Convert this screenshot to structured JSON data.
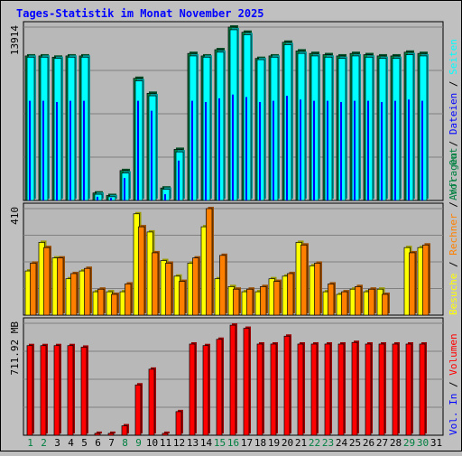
{
  "title": "Tages-Statistik im Monat November 2025",
  "colors": {
    "background": "#c0c0c0",
    "plot_bg": "#b8b8b8",
    "title": "#0000ff",
    "anfragen": "#008040",
    "dateien": "#0000ff",
    "seiten": "#00ffff",
    "besuche": "#ffff00",
    "rechner": "#ff8000",
    "volumen": "#ff0000",
    "weekend_day": "#008040",
    "weekday": "#000000",
    "separator": "#000000"
  },
  "right_legend": {
    "top": [
      {
        "text": "Anfragen",
        "color": "#008040"
      },
      {
        "text": "Dateien",
        "color": "#0000ff"
      },
      {
        "text": "Seiten",
        "color": "#00ffff"
      }
    ],
    "middle": [
      {
        "text": "Besuche",
        "color": "#ffff00"
      },
      {
        "text": "Rechner",
        "color": "#ff8000"
      },
      {
        "text": "Vol. Out",
        "color": "#008040"
      }
    ],
    "bottom": [
      {
        "text": "Vol. In",
        "color": "#0000ff"
      },
      {
        "text": "Volumen",
        "color": "#ff0000"
      }
    ]
  },
  "chart_data": [
    {
      "type": "bar",
      "max_label": "13914",
      "ylim": [
        0,
        13914
      ],
      "grid": true,
      "categories": [
        "1",
        "2",
        "3",
        "4",
        "5",
        "6",
        "7",
        "8",
        "9",
        "10",
        "11",
        "12",
        "13",
        "14",
        "15",
        "16",
        "17",
        "18",
        "19",
        "20",
        "21",
        "22",
        "23",
        "24",
        "25",
        "26",
        "27",
        "28",
        "29",
        "30",
        "31"
      ],
      "series": [
        {
          "name": "Anfragen",
          "values": [
            11600,
            11600,
            11500,
            11600,
            11600,
            600,
            400,
            2400,
            9800,
            8600,
            1000,
            4100,
            11800,
            11600,
            12100,
            13914,
            13500,
            11400,
            11600,
            12700,
            12000,
            11800,
            11700,
            11600,
            11800,
            11700,
            11600,
            11600,
            11900,
            11800,
            0
          ]
        },
        {
          "name": "Dateien",
          "values": [
            8000,
            8000,
            7900,
            8000,
            8000,
            300,
            200,
            1800,
            8000,
            7200,
            500,
            3200,
            8000,
            7900,
            8200,
            8500,
            8300,
            7900,
            8000,
            8400,
            8100,
            8000,
            8000,
            7900,
            8000,
            8000,
            7900,
            8000,
            8100,
            8000,
            0
          ]
        },
        {
          "name": "Seiten",
          "values": [
            11500,
            11500,
            11400,
            11500,
            11500,
            500,
            300,
            2200,
            9600,
            8400,
            900,
            3900,
            11600,
            11500,
            11900,
            13700,
            13300,
            11300,
            11500,
            12500,
            11800,
            11600,
            11500,
            11400,
            11600,
            11500,
            11400,
            11400,
            11700,
            11600,
            0
          ]
        }
      ]
    },
    {
      "type": "bar",
      "max_label": "410",
      "ylim": [
        0,
        410
      ],
      "grid": true,
      "categories": [
        "1",
        "2",
        "3",
        "4",
        "5",
        "6",
        "7",
        "8",
        "9",
        "10",
        "11",
        "12",
        "13",
        "14",
        "15",
        "16",
        "17",
        "18",
        "19",
        "20",
        "21",
        "22",
        "23",
        "24",
        "25",
        "26",
        "27",
        "28",
        "29",
        "30",
        "31"
      ],
      "series": [
        {
          "name": "Besuche",
          "values": [
            170,
            280,
            220,
            140,
            170,
            90,
            90,
            90,
            390,
            320,
            210,
            150,
            200,
            340,
            140,
            110,
            90,
            90,
            140,
            150,
            280,
            190,
            90,
            80,
            100,
            90,
            100,
            0,
            260,
            260,
            0
          ]
        },
        {
          "name": "Rechner",
          "values": [
            200,
            260,
            220,
            160,
            180,
            100,
            80,
            120,
            340,
            240,
            200,
            130,
            220,
            410,
            230,
            100,
            100,
            110,
            130,
            160,
            270,
            200,
            120,
            90,
            110,
            100,
            80,
            0,
            240,
            270,
            0
          ]
        }
      ]
    },
    {
      "type": "bar",
      "max_label": "711.92 MB",
      "ylim": [
        0,
        711.92
      ],
      "grid": true,
      "categories": [
        "1",
        "2",
        "3",
        "4",
        "5",
        "6",
        "7",
        "8",
        "9",
        "10",
        "11",
        "12",
        "13",
        "14",
        "15",
        "16",
        "17",
        "18",
        "19",
        "20",
        "21",
        "22",
        "23",
        "24",
        "25",
        "26",
        "27",
        "28",
        "29",
        "30",
        "31"
      ],
      "series": [
        {
          "name": "Volumen",
          "values": [
            570,
            570,
            570,
            570,
            560,
            12,
            12,
            60,
            320,
            420,
            12,
            150,
            580,
            570,
            610,
            700,
            680,
            580,
            580,
            630,
            580,
            580,
            580,
            580,
            590,
            580,
            580,
            580,
            580,
            580,
            0
          ]
        }
      ]
    }
  ],
  "days": [
    {
      "label": "1",
      "weekend": true
    },
    {
      "label": "2",
      "weekend": true
    },
    {
      "label": "3",
      "weekend": false
    },
    {
      "label": "4",
      "weekend": false
    },
    {
      "label": "5",
      "weekend": false
    },
    {
      "label": "6",
      "weekend": false
    },
    {
      "label": "7",
      "weekend": false
    },
    {
      "label": "8",
      "weekend": true
    },
    {
      "label": "9",
      "weekend": true
    },
    {
      "label": "10",
      "weekend": false
    },
    {
      "label": "11",
      "weekend": false
    },
    {
      "label": "12",
      "weekend": false
    },
    {
      "label": "13",
      "weekend": false
    },
    {
      "label": "14",
      "weekend": false
    },
    {
      "label": "15",
      "weekend": true
    },
    {
      "label": "16",
      "weekend": true
    },
    {
      "label": "17",
      "weekend": false
    },
    {
      "label": "18",
      "weekend": false
    },
    {
      "label": "19",
      "weekend": false
    },
    {
      "label": "20",
      "weekend": false
    },
    {
      "label": "21",
      "weekend": false
    },
    {
      "label": "22",
      "weekend": true
    },
    {
      "label": "23",
      "weekend": true
    },
    {
      "label": "24",
      "weekend": false
    },
    {
      "label": "25",
      "weekend": false
    },
    {
      "label": "26",
      "weekend": false
    },
    {
      "label": "27",
      "weekend": false
    },
    {
      "label": "28",
      "weekend": false
    },
    {
      "label": "29",
      "weekend": true
    },
    {
      "label": "30",
      "weekend": true
    },
    {
      "label": "31",
      "weekend": false
    }
  ]
}
